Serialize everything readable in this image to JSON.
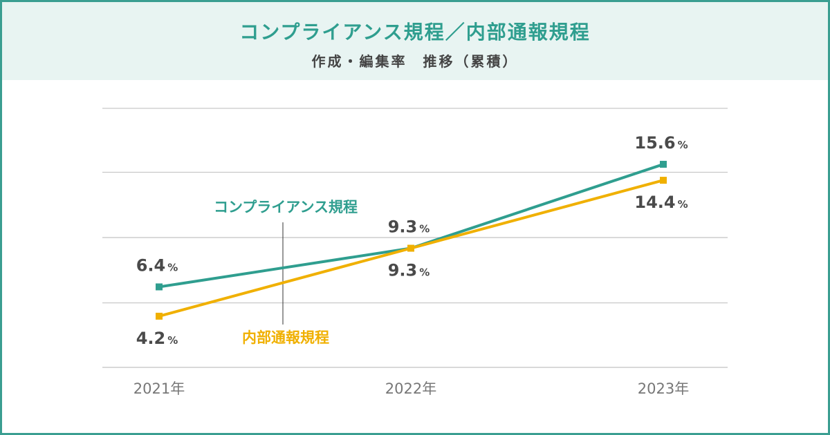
{
  "header": {
    "title": "コンプライアンス規程／内部通報規程",
    "subtitle": "作成・編集率　推移（累積）"
  },
  "chart_data": {
    "type": "line",
    "title": "コンプライアンス規程／内部通報規程 作成・編集率 推移（累積）",
    "categories": [
      "2021年",
      "2022年",
      "2023年"
    ],
    "ylim": [
      0,
      20
    ],
    "grid": true,
    "unit": "%",
    "series": [
      {
        "name": "コンプライアンス規程",
        "color": "#2f9e8f",
        "values": [
          6.4,
          9.3,
          15.6
        ],
        "labels": [
          "6.4",
          "9.3",
          "15.6"
        ]
      },
      {
        "name": "内部通報規程",
        "color": "#f0b000",
        "values": [
          4.2,
          9.3,
          14.4
        ],
        "labels": [
          "4.2",
          "9.3",
          "14.4"
        ]
      }
    ]
  }
}
